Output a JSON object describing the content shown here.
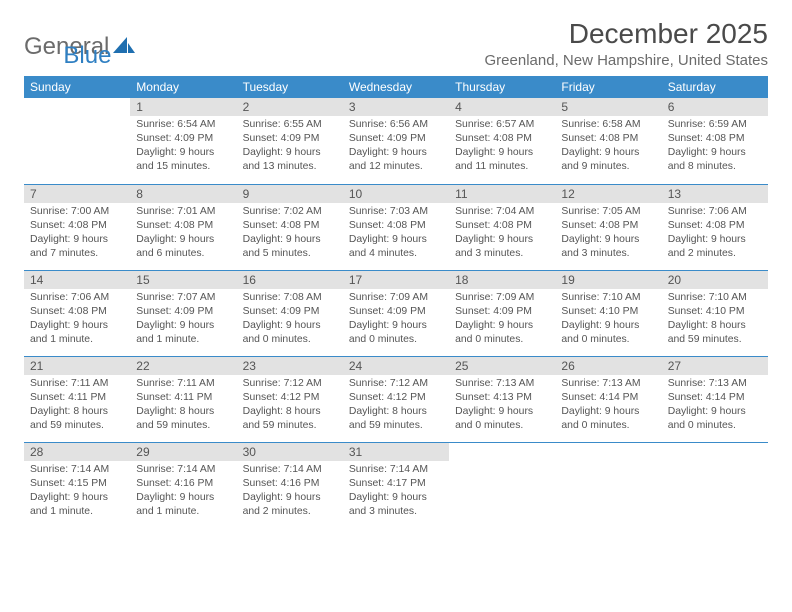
{
  "brand": {
    "name_a": "General",
    "name_b": "Blue"
  },
  "title": "December 2025",
  "location": "Greenland, New Hampshire, United States",
  "columns": [
    "Sunday",
    "Monday",
    "Tuesday",
    "Wednesday",
    "Thursday",
    "Friday",
    "Saturday"
  ],
  "colors": {
    "header_bg": "#3a8bc9",
    "header_fg": "#ffffff",
    "daynum_bg": "#e2e2e2",
    "text": "#555555",
    "brand_gray": "#6b6b6b",
    "brand_blue": "#2f7fc2",
    "rule": "#3a8bc9"
  },
  "fonts": {
    "title_size_pt": 21,
    "location_size_pt": 11,
    "header_size_pt": 9,
    "daynum_size_pt": 9,
    "body_size_pt": 8
  },
  "start_offset": 1,
  "days": [
    {
      "n": 1,
      "sunrise": "6:54 AM",
      "sunset": "4:09 PM",
      "daylight": "9 hours and 15 minutes."
    },
    {
      "n": 2,
      "sunrise": "6:55 AM",
      "sunset": "4:09 PM",
      "daylight": "9 hours and 13 minutes."
    },
    {
      "n": 3,
      "sunrise": "6:56 AM",
      "sunset": "4:09 PM",
      "daylight": "9 hours and 12 minutes."
    },
    {
      "n": 4,
      "sunrise": "6:57 AM",
      "sunset": "4:08 PM",
      "daylight": "9 hours and 11 minutes."
    },
    {
      "n": 5,
      "sunrise": "6:58 AM",
      "sunset": "4:08 PM",
      "daylight": "9 hours and 9 minutes."
    },
    {
      "n": 6,
      "sunrise": "6:59 AM",
      "sunset": "4:08 PM",
      "daylight": "9 hours and 8 minutes."
    },
    {
      "n": 7,
      "sunrise": "7:00 AM",
      "sunset": "4:08 PM",
      "daylight": "9 hours and 7 minutes."
    },
    {
      "n": 8,
      "sunrise": "7:01 AM",
      "sunset": "4:08 PM",
      "daylight": "9 hours and 6 minutes."
    },
    {
      "n": 9,
      "sunrise": "7:02 AM",
      "sunset": "4:08 PM",
      "daylight": "9 hours and 5 minutes."
    },
    {
      "n": 10,
      "sunrise": "7:03 AM",
      "sunset": "4:08 PM",
      "daylight": "9 hours and 4 minutes."
    },
    {
      "n": 11,
      "sunrise": "7:04 AM",
      "sunset": "4:08 PM",
      "daylight": "9 hours and 3 minutes."
    },
    {
      "n": 12,
      "sunrise": "7:05 AM",
      "sunset": "4:08 PM",
      "daylight": "9 hours and 3 minutes."
    },
    {
      "n": 13,
      "sunrise": "7:06 AM",
      "sunset": "4:08 PM",
      "daylight": "9 hours and 2 minutes."
    },
    {
      "n": 14,
      "sunrise": "7:06 AM",
      "sunset": "4:08 PM",
      "daylight": "9 hours and 1 minute."
    },
    {
      "n": 15,
      "sunrise": "7:07 AM",
      "sunset": "4:09 PM",
      "daylight": "9 hours and 1 minute."
    },
    {
      "n": 16,
      "sunrise": "7:08 AM",
      "sunset": "4:09 PM",
      "daylight": "9 hours and 0 minutes."
    },
    {
      "n": 17,
      "sunrise": "7:09 AM",
      "sunset": "4:09 PM",
      "daylight": "9 hours and 0 minutes."
    },
    {
      "n": 18,
      "sunrise": "7:09 AM",
      "sunset": "4:09 PM",
      "daylight": "9 hours and 0 minutes."
    },
    {
      "n": 19,
      "sunrise": "7:10 AM",
      "sunset": "4:10 PM",
      "daylight": "9 hours and 0 minutes."
    },
    {
      "n": 20,
      "sunrise": "7:10 AM",
      "sunset": "4:10 PM",
      "daylight": "8 hours and 59 minutes."
    },
    {
      "n": 21,
      "sunrise": "7:11 AM",
      "sunset": "4:11 PM",
      "daylight": "8 hours and 59 minutes."
    },
    {
      "n": 22,
      "sunrise": "7:11 AM",
      "sunset": "4:11 PM",
      "daylight": "8 hours and 59 minutes."
    },
    {
      "n": 23,
      "sunrise": "7:12 AM",
      "sunset": "4:12 PM",
      "daylight": "8 hours and 59 minutes."
    },
    {
      "n": 24,
      "sunrise": "7:12 AM",
      "sunset": "4:12 PM",
      "daylight": "8 hours and 59 minutes."
    },
    {
      "n": 25,
      "sunrise": "7:13 AM",
      "sunset": "4:13 PM",
      "daylight": "9 hours and 0 minutes."
    },
    {
      "n": 26,
      "sunrise": "7:13 AM",
      "sunset": "4:14 PM",
      "daylight": "9 hours and 0 minutes."
    },
    {
      "n": 27,
      "sunrise": "7:13 AM",
      "sunset": "4:14 PM",
      "daylight": "9 hours and 0 minutes."
    },
    {
      "n": 28,
      "sunrise": "7:14 AM",
      "sunset": "4:15 PM",
      "daylight": "9 hours and 1 minute."
    },
    {
      "n": 29,
      "sunrise": "7:14 AM",
      "sunset": "4:16 PM",
      "daylight": "9 hours and 1 minute."
    },
    {
      "n": 30,
      "sunrise": "7:14 AM",
      "sunset": "4:16 PM",
      "daylight": "9 hours and 2 minutes."
    },
    {
      "n": 31,
      "sunrise": "7:14 AM",
      "sunset": "4:17 PM",
      "daylight": "9 hours and 3 minutes."
    }
  ]
}
